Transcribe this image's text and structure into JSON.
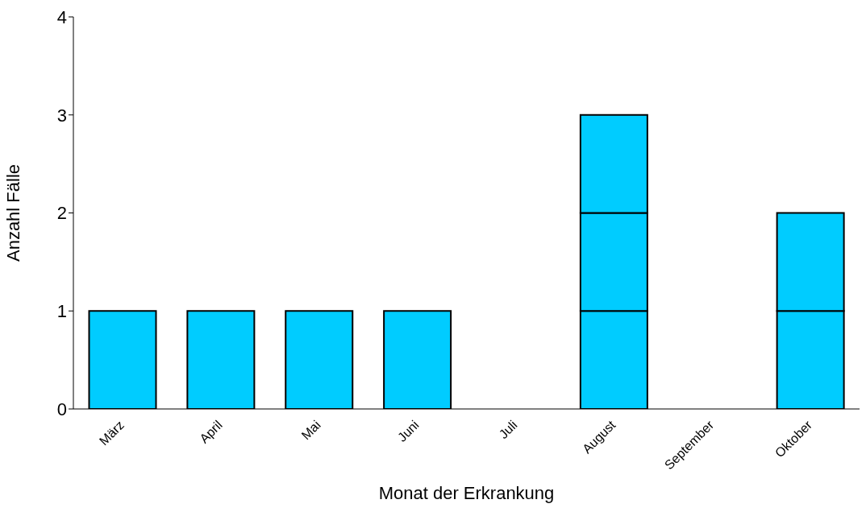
{
  "chart_data": {
    "type": "bar",
    "stacked": true,
    "xlabel": "Monat der Erkrankung",
    "ylabel": "Anzahl Fälle",
    "categories": [
      "März",
      "April",
      "Mai",
      "Juni",
      "Juli",
      "August",
      "September",
      "Oktober"
    ],
    "series": [
      {
        "color": "#00ccff",
        "values": [
          1,
          1,
          1,
          1,
          null,
          1,
          null,
          1
        ]
      },
      {
        "color": "#00ccff",
        "values": [
          null,
          null,
          null,
          null,
          null,
          1,
          null,
          1
        ]
      },
      {
        "color": "#00ccff",
        "values": [
          null,
          null,
          null,
          null,
          null,
          1,
          null,
          null
        ]
      }
    ],
    "ylim": [
      0,
      4
    ],
    "yticks": [
      0,
      1,
      2,
      3,
      4
    ]
  }
}
